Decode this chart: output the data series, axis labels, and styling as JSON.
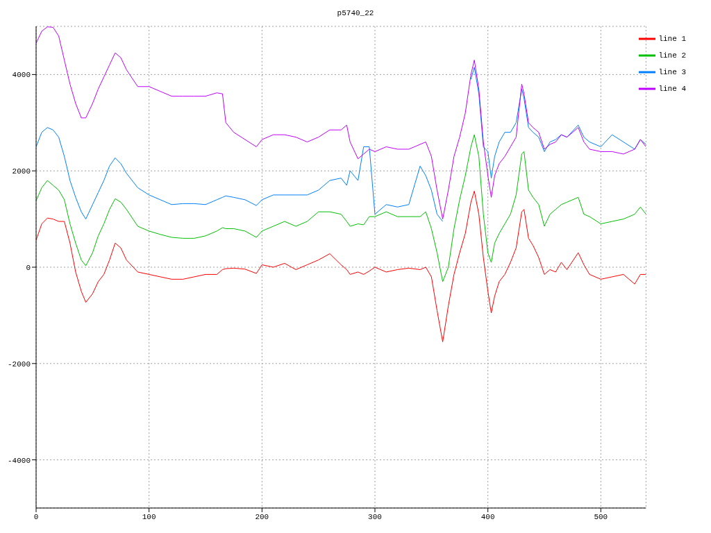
{
  "chart_data": {
    "type": "line",
    "title": "p5740_22",
    "x": [
      0,
      5,
      10,
      15,
      20,
      25,
      30,
      35,
      40,
      44,
      50,
      55,
      60,
      65,
      70,
      75,
      80,
      90,
      100,
      110,
      120,
      130,
      140,
      150,
      160,
      165,
      168,
      175,
      185,
      195,
      200,
      210,
      220,
      230,
      240,
      250,
      260,
      270,
      275,
      278,
      285,
      290,
      295,
      300,
      310,
      320,
      330,
      340,
      345,
      350,
      355,
      360,
      365,
      370,
      375,
      380,
      385,
      388,
      392,
      396,
      400,
      403,
      406,
      410,
      415,
      420,
      425,
      430,
      432,
      436,
      440,
      445,
      450,
      455,
      460,
      465,
      470,
      480,
      485,
      490,
      500,
      510,
      520,
      530,
      535,
      540
    ],
    "series": [
      {
        "name": "line 1",
        "color": "#ff0000",
        "values": [
          560,
          900,
          1020,
          1000,
          950,
          950,
          500,
          -100,
          -500,
          -730,
          -550,
          -300,
          -150,
          150,
          500,
          400,
          150,
          -100,
          -150,
          -200,
          -250,
          -250,
          -200,
          -150,
          -150,
          -50,
          -30,
          -20,
          -40,
          -130,
          50,
          0,
          80,
          -50,
          50,
          150,
          280,
          50,
          -50,
          -150,
          -100,
          -150,
          -80,
          0,
          -100,
          -50,
          -20,
          -50,
          0,
          -200,
          -900,
          -1550,
          -800,
          -150,
          300,
          700,
          1350,
          1580,
          1100,
          200,
          -500,
          -950,
          -600,
          -300,
          -150,
          100,
          400,
          1150,
          1200,
          600,
          450,
          200,
          -150,
          -50,
          -100,
          100,
          -50,
          300,
          50,
          -150,
          -250,
          -200,
          -150,
          -350,
          -150,
          -150
        ]
      },
      {
        "name": "line 2",
        "color": "#00c000",
        "values": [
          1380,
          1650,
          1800,
          1700,
          1600,
          1400,
          900,
          500,
          150,
          30,
          300,
          650,
          900,
          1200,
          1420,
          1350,
          1200,
          850,
          750,
          680,
          620,
          600,
          600,
          650,
          750,
          820,
          800,
          800,
          750,
          620,
          750,
          850,
          950,
          850,
          950,
          1150,
          1150,
          1100,
          950,
          850,
          900,
          880,
          1050,
          1050,
          1150,
          1050,
          1050,
          1050,
          1150,
          800,
          300,
          -300,
          0,
          800,
          1400,
          1900,
          2500,
          2750,
          2300,
          1100,
          300,
          100,
          500,
          700,
          900,
          1100,
          1500,
          2350,
          2400,
          1600,
          1450,
          1300,
          850,
          1100,
          1200,
          1300,
          1350,
          1450,
          1100,
          1050,
          900,
          950,
          1000,
          1100,
          1250,
          1100
        ]
      },
      {
        "name": "line 3",
        "color": "#0080ff",
        "values": [
          2500,
          2800,
          2900,
          2850,
          2700,
          2300,
          1800,
          1450,
          1150,
          1000,
          1300,
          1550,
          1800,
          2100,
          2270,
          2150,
          1950,
          1650,
          1500,
          1400,
          1300,
          1320,
          1320,
          1300,
          1400,
          1450,
          1480,
          1450,
          1400,
          1280,
          1400,
          1500,
          1500,
          1500,
          1500,
          1600,
          1800,
          1850,
          1700,
          2000,
          1800,
          2500,
          2500,
          1100,
          1300,
          1250,
          1300,
          2100,
          1900,
          1600,
          1100,
          950,
          null,
          null,
          null,
          null,
          3900,
          4150,
          3600,
          2500,
          2400,
          1850,
          2300,
          2600,
          2800,
          2800,
          3000,
          3700,
          3500,
          2900,
          2800,
          2700,
          2400,
          2600,
          2650,
          2750,
          2700,
          2950,
          2700,
          2600,
          2500,
          2750,
          2600,
          2450,
          2650,
          2550
        ]
      },
      {
        "name": "line 4",
        "color": "#c000ff",
        "values": [
          4650,
          4900,
          4990,
          4980,
          4800,
          4300,
          3800,
          3400,
          3100,
          3100,
          3400,
          3700,
          3950,
          4200,
          4450,
          4350,
          4100,
          3750,
          3750,
          3650,
          3550,
          3550,
          3550,
          3550,
          3620,
          3600,
          3000,
          2800,
          2650,
          2500,
          2650,
          2750,
          2750,
          2700,
          2600,
          2700,
          2850,
          2850,
          2950,
          2600,
          2250,
          2350,
          2450,
          2400,
          2500,
          2450,
          2450,
          2550,
          2600,
          2300,
          1600,
          1000,
          1600,
          2300,
          2700,
          3200,
          4000,
          4300,
          3700,
          2600,
          1900,
          1450,
          1900,
          2150,
          2300,
          2500,
          2700,
          3800,
          3600,
          3000,
          2900,
          2800,
          2450,
          2550,
          2600,
          2750,
          2700,
          2900,
          2600,
          2450,
          2400,
          2400,
          2350,
          2450,
          2650,
          2500
        ]
      }
    ],
    "xlim": [
      0,
      540
    ],
    "xticks": [
      0,
      100,
      200,
      300,
      400,
      500
    ],
    "ylim": [
      -5000,
      5000
    ],
    "yticks": [
      -4000,
      -2000,
      0,
      2000,
      4000
    ],
    "grid": true,
    "legend": "top right",
    "marker": "none",
    "line_style": "solid"
  }
}
